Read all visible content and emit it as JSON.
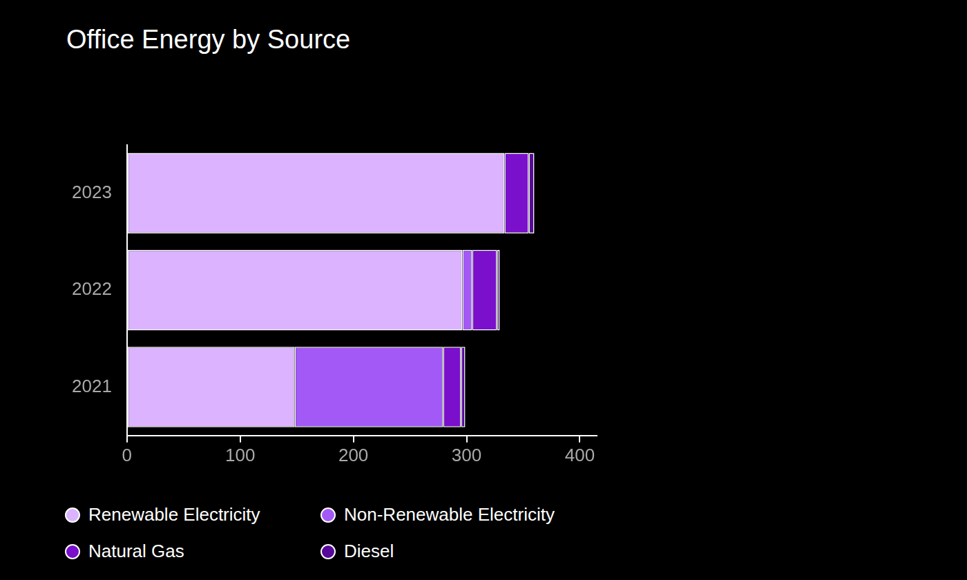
{
  "chart_data": {
    "type": "bar",
    "title": "Office Energy by Source",
    "orientation": "horizontal",
    "stacked": true,
    "categories": [
      "2023",
      "2022",
      "2021"
    ],
    "series": [
      {
        "name": "Renewable Electricity",
        "color": "#dbb3ff",
        "values": [
          333.5,
          296.3,
          148.2
        ]
      },
      {
        "name": "Non-Renewable Electricity",
        "color": "#a259f5",
        "values": [
          0,
          8.6,
          131.1
        ]
      },
      {
        "name": "Natural Gas",
        "color": "#7a0fcc",
        "values": [
          21.4,
          21.9,
          15.8
        ]
      },
      {
        "name": "Diesel",
        "color": "#56099a",
        "values": [
          4.9,
          2.5,
          3.7
        ]
      }
    ],
    "xlim": [
      0,
      415
    ],
    "xticks": [
      0,
      100,
      200,
      300,
      400
    ],
    "grid": false,
    "legend": "bottom"
  }
}
